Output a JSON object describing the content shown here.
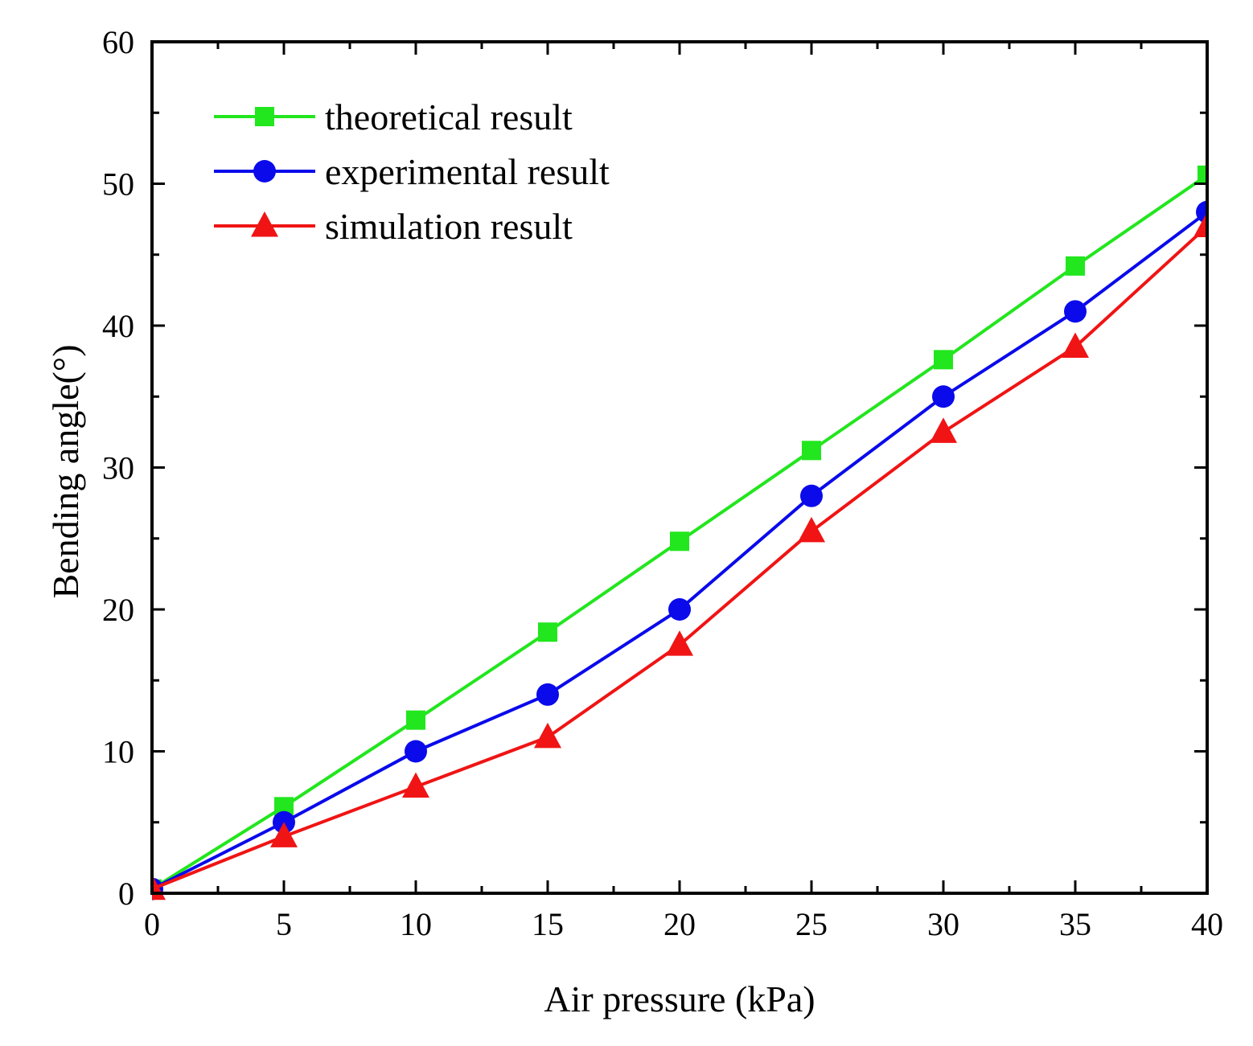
{
  "chart_data": {
    "type": "line",
    "title": "",
    "xlabel": "Air pressure (kPa)",
    "ylabel": "Bending angle(°)",
    "xlim": [
      0,
      40
    ],
    "ylim": [
      0,
      60
    ],
    "x_ticks": [
      0,
      5,
      10,
      15,
      20,
      25,
      30,
      35,
      40
    ],
    "y_ticks": [
      0,
      10,
      20,
      30,
      40,
      50,
      60
    ],
    "x_tick_labels": [
      "0",
      "5",
      "10",
      "15",
      "20",
      "25",
      "30",
      "35",
      "40"
    ],
    "y_tick_labels": [
      "0",
      "10",
      "20",
      "30",
      "40",
      "50",
      "60"
    ],
    "grid": false,
    "legend_position": "top-left",
    "x": [
      0,
      5,
      10,
      15,
      20,
      25,
      30,
      35,
      40
    ],
    "series": [
      {
        "name": "theoretical result",
        "marker": "square",
        "color": "#22e61e",
        "values": [
          0.3,
          6.1,
          12.2,
          18.4,
          24.8,
          31.2,
          37.6,
          44.2,
          50.6
        ]
      },
      {
        "name": "experimental result",
        "marker": "circle",
        "color": "#0a0aeb",
        "values": [
          0.3,
          5.0,
          10.0,
          14.0,
          20.0,
          28.0,
          35.0,
          41.0,
          48.0
        ]
      },
      {
        "name": "simulation result",
        "marker": "triangle",
        "color": "#f01414",
        "values": [
          0.3,
          4.0,
          7.5,
          11.0,
          17.5,
          25.5,
          32.5,
          38.5,
          47.0
        ]
      }
    ]
  }
}
